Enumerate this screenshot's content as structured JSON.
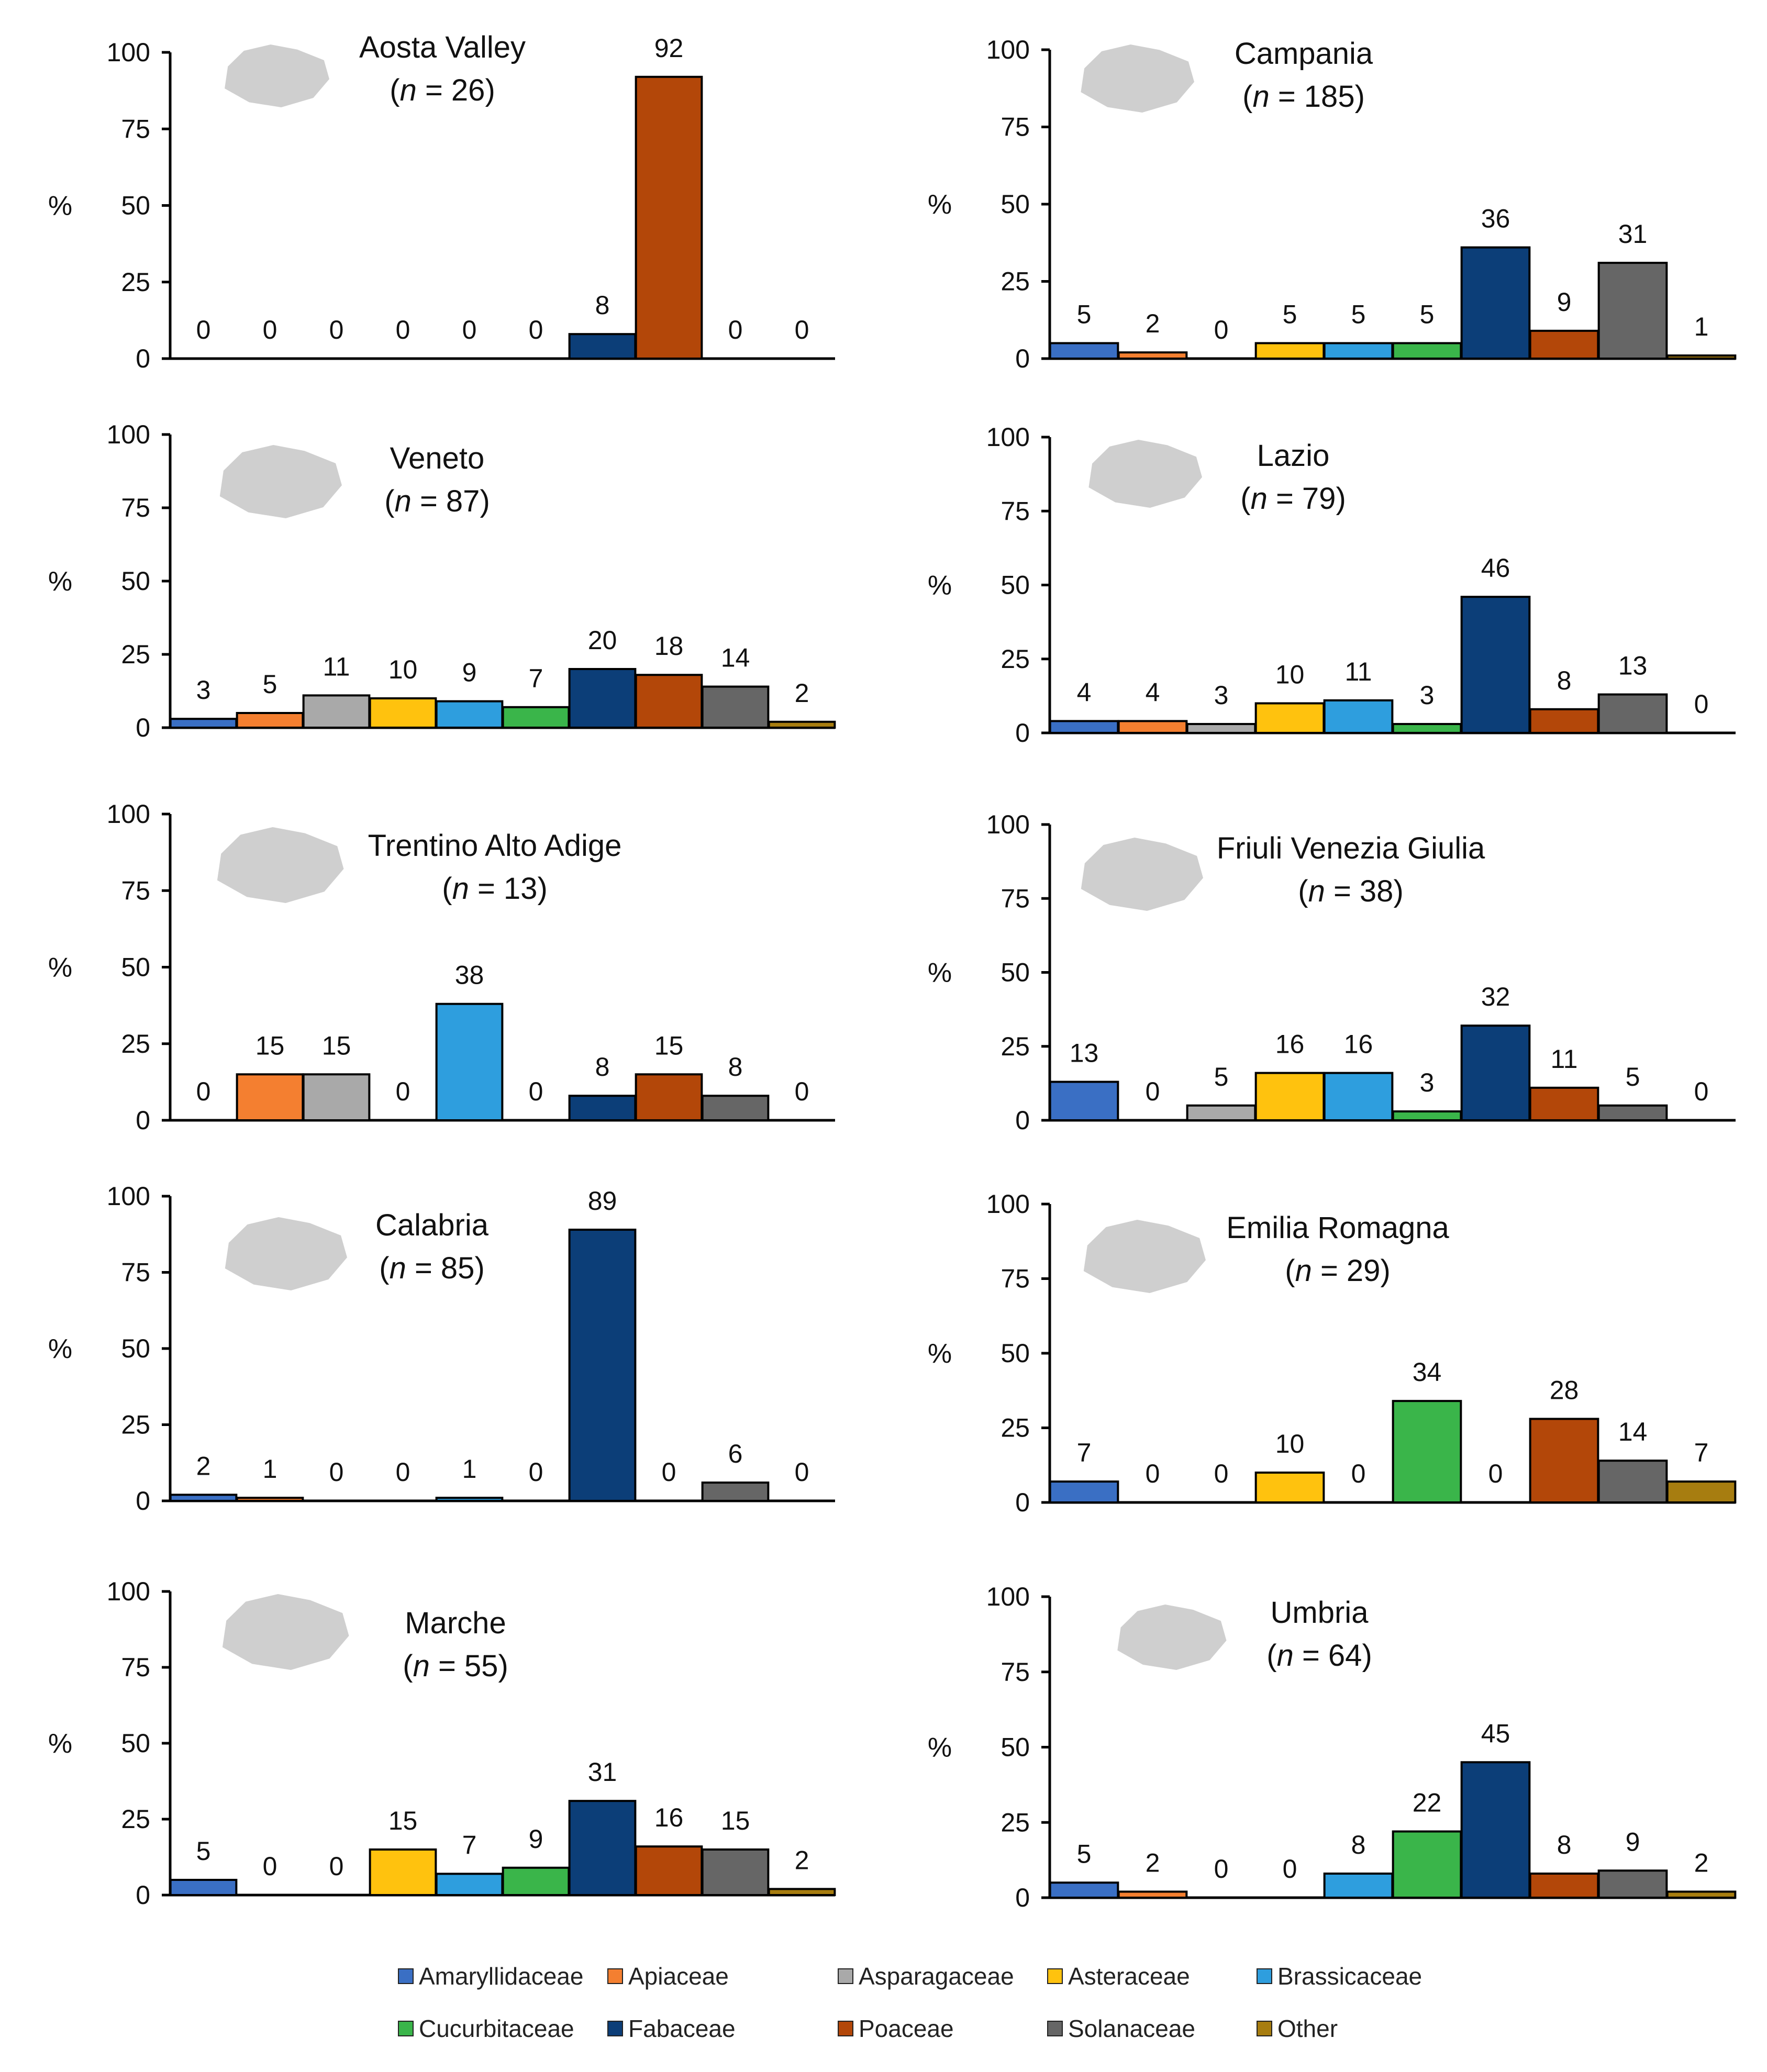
{
  "chart_data": [
    {
      "type": "bar",
      "region": "Aosta Valley",
      "n_label": "n",
      "n_value": "= 26)",
      "ylabel": "%",
      "ylim": [
        0,
        100
      ],
      "yticks": [
        0,
        25,
        50,
        75,
        100
      ],
      "values": [
        0,
        0,
        0,
        0,
        0,
        0,
        8,
        92,
        0,
        0
      ]
    },
    {
      "type": "bar",
      "region": "Campania",
      "n_label": "n",
      "n_value": "= 185)",
      "ylabel": "%",
      "ylim": [
        0,
        100
      ],
      "yticks": [
        0,
        25,
        50,
        75,
        100
      ],
      "values": [
        5,
        2,
        0,
        5,
        5,
        5,
        36,
        9,
        31,
        1
      ]
    },
    {
      "type": "bar",
      "region": "Veneto",
      "n_label": "n",
      "n_value": "= 87)",
      "ylabel": "%",
      "ylim": [
        0,
        100
      ],
      "yticks": [
        0,
        25,
        50,
        75,
        100
      ],
      "values": [
        3,
        5,
        11,
        10,
        9,
        7,
        20,
        18,
        14,
        2
      ]
    },
    {
      "type": "bar",
      "region": "Lazio",
      "n_label": "n",
      "n_value": "= 79)",
      "ylabel": "%",
      "ylim": [
        0,
        100
      ],
      "yticks": [
        0,
        25,
        50,
        75,
        100
      ],
      "values": [
        4,
        4,
        3,
        10,
        11,
        3,
        46,
        8,
        13,
        0
      ]
    },
    {
      "type": "bar",
      "region": "Trentino  Alto Adige",
      "n_label": "n",
      "n_value": "= 13)",
      "ylabel": "%",
      "ylim": [
        0,
        100
      ],
      "yticks": [
        0,
        25,
        50,
        75,
        100
      ],
      "values": [
        0,
        15,
        15,
        0,
        38,
        0,
        8,
        15,
        8,
        0
      ]
    },
    {
      "type": "bar",
      "region": "Friuli Venezia Giulia",
      "n_label": "n",
      "n_value": "= 38)",
      "ylabel": "%",
      "ylim": [
        0,
        100
      ],
      "yticks": [
        0,
        25,
        50,
        75,
        100
      ],
      "values": [
        13,
        0,
        5,
        16,
        16,
        3,
        32,
        11,
        5,
        0
      ]
    },
    {
      "type": "bar",
      "region": "Calabria",
      "n_label": "n",
      "n_value": "= 85)",
      "ylabel": "%",
      "ylim": [
        0,
        100
      ],
      "yticks": [
        0,
        25,
        50,
        75,
        100
      ],
      "values": [
        2,
        1,
        0,
        0,
        1,
        0,
        89,
        0,
        6,
        0
      ]
    },
    {
      "type": "bar",
      "region": "Emilia Romagna",
      "n_label": "n",
      "n_value": "= 29)",
      "ylabel": "%",
      "ylim": [
        0,
        100
      ],
      "yticks": [
        0,
        25,
        50,
        75,
        100
      ],
      "values": [
        7,
        0,
        0,
        10,
        0,
        34,
        0,
        28,
        14,
        7
      ]
    },
    {
      "type": "bar",
      "region": "Marche",
      "n_label": "n",
      "n_value": "= 55)",
      "ylabel": "%",
      "ylim": [
        0,
        100
      ],
      "yticks": [
        0,
        25,
        50,
        75,
        100
      ],
      "values": [
        5,
        0,
        0,
        15,
        7,
        9,
        31,
        16,
        15,
        2
      ]
    },
    {
      "type": "bar",
      "region": "Umbria",
      "n_label": "n",
      "n_value": "= 64)",
      "ylabel": "%",
      "ylim": [
        0,
        100
      ],
      "yticks": [
        0,
        25,
        50,
        75,
        100
      ],
      "values": [
        5,
        2,
        0,
        0,
        8,
        22,
        45,
        8,
        9,
        2
      ]
    }
  ],
  "categories": [
    "Amaryllidaceae",
    "Apiaceae",
    "Asparagaceae",
    "Asteraceae",
    "Brassicaceae",
    "Cucurbitaceae",
    "Fabaceae",
    "Poaceae",
    "Solanaceae",
    "Other"
  ],
  "colors": [
    "#3a6fc4",
    "#f47f30",
    "#a9a9a9",
    "#ffc20e",
    "#2e9ede",
    "#3ab54a",
    "#0c3e78",
    "#b34709",
    "#666666",
    "#a77d10"
  ],
  "map_color": "#cfcfcf"
}
